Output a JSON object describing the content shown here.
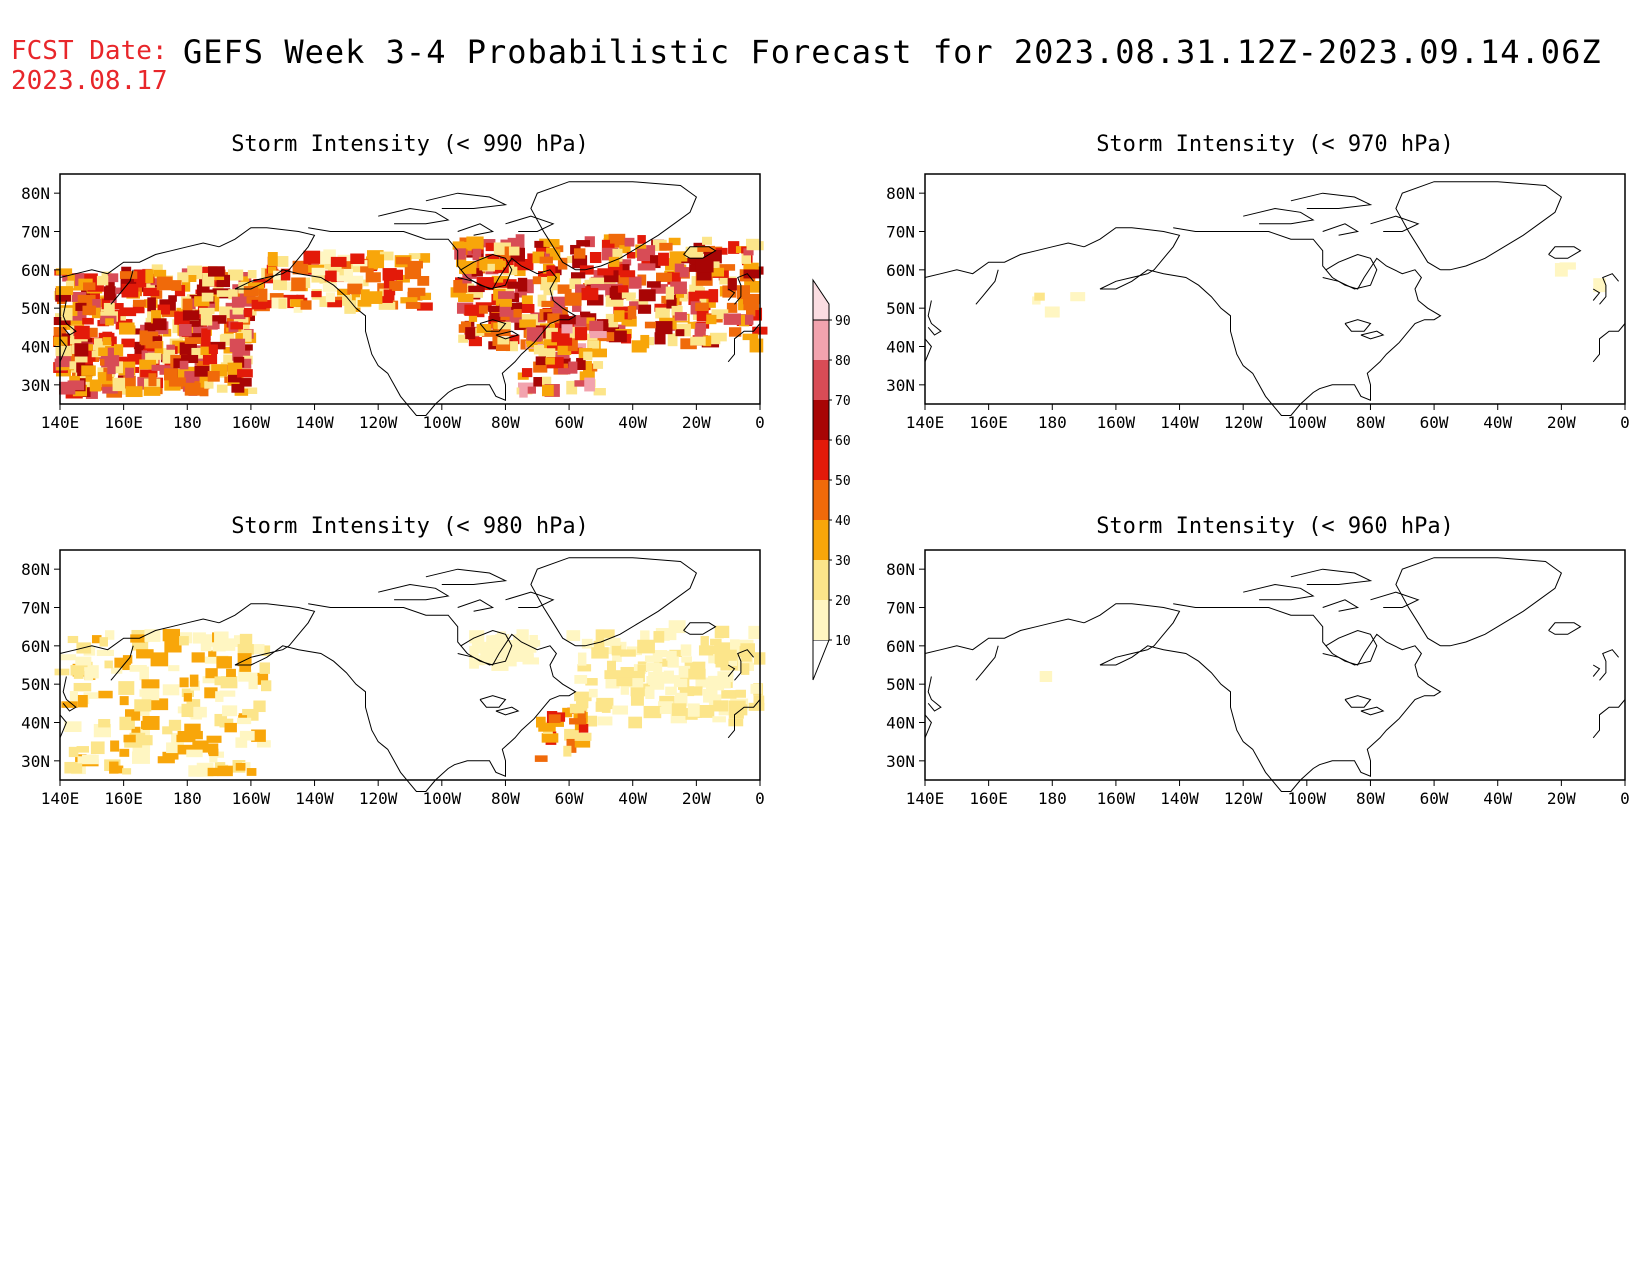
{
  "header": {
    "fcst_label": "FCST Date:",
    "fcst_date": "2023.08.17",
    "title": "GEFS Week 3-4 Probabilistic Forecast for 2023.08.31.12Z-2023.09.14.06Z"
  },
  "axes": {
    "lon_ticks": [
      "140E",
      "160E",
      "180",
      "160W",
      "140W",
      "120W",
      "100W",
      "80W",
      "60W",
      "40W",
      "20W",
      "0"
    ],
    "lat_ticks": [
      "80N",
      "70N",
      "60N",
      "50N",
      "40N",
      "30N"
    ]
  },
  "colorbar": {
    "levels": [
      "10",
      "20",
      "30",
      "40",
      "50",
      "60",
      "70",
      "80",
      "90"
    ],
    "colors": [
      "#fff6c2",
      "#fce58a",
      "#f8a60a",
      "#f06a0a",
      "#e31a09",
      "#a80505",
      "#d84c56",
      "#f2a3ae",
      "#fbdde2"
    ]
  },
  "panels": [
    {
      "id": "p990",
      "title": "Storm Intensity (< 990 hPa)",
      "threshold_hpa": 990,
      "level": "high"
    },
    {
      "id": "p970",
      "title": "Storm Intensity (< 970 hPa)",
      "threshold_hpa": 970,
      "level": "low"
    },
    {
      "id": "p980",
      "title": "Storm Intensity (< 980 hPa)",
      "threshold_hpa": 980,
      "level": "medium"
    },
    {
      "id": "p960",
      "title": "Storm Intensity (< 960 hPa)",
      "threshold_hpa": 960,
      "level": "minimal"
    }
  ]
}
